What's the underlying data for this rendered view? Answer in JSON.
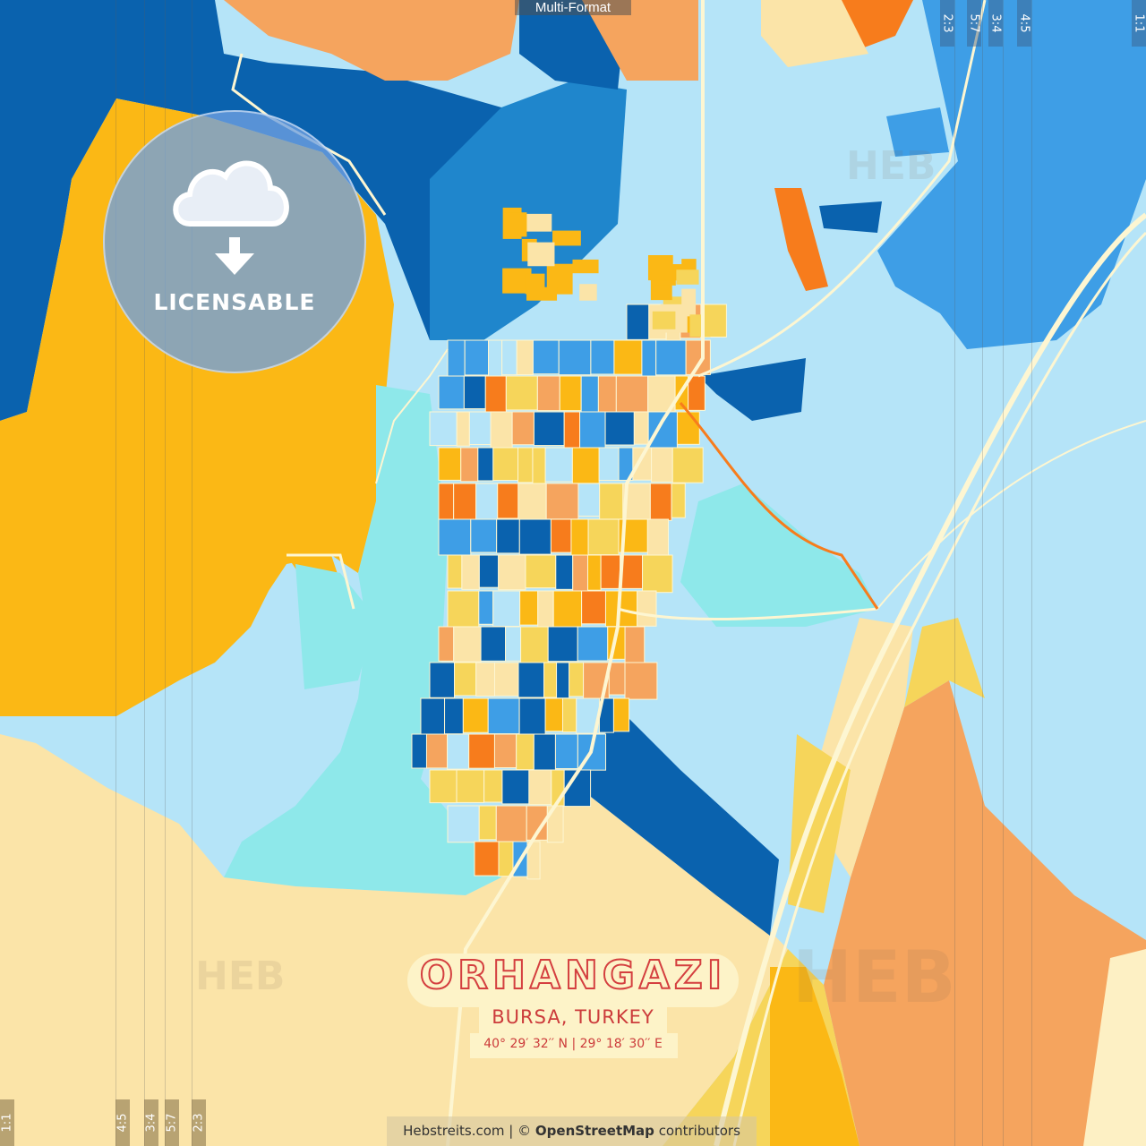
{
  "map": {
    "city": "ORHANGAZI",
    "region": "BURSA, TURKEY",
    "coordinates": "40°  29′  32′′ N  |  29°  18′  30′′ E",
    "colors": {
      "dark_blue": "#0a62ae",
      "blue": "#3e9ee6",
      "light_blue": "#b5e4f8",
      "cyan": "#8ee8ea",
      "yellow_orange": "#fbb815",
      "yellow": "#f6d55a",
      "beige": "#fbe4a8",
      "orange": "#f5a45e",
      "deep_orange": "#f77c1c",
      "road": "#fdf6d2",
      "title_red": "#d43f3f"
    }
  },
  "overlay": {
    "format_label": "Multi-Format",
    "license_label": "LICENSABLE",
    "license_icon": "cloud-download-icon",
    "watermark": "HEB",
    "ratios_top": [
      "2:3",
      "5:7",
      "3:4",
      "4:5",
      "1:1"
    ],
    "ratios_bottom": [
      "1:1",
      "4:5",
      "3:4",
      "5:7",
      "2:3"
    ]
  },
  "credits": {
    "site": "Hebstreits.com | © ",
    "osm": "OpenStreetMap",
    "suffix": " contributors"
  }
}
